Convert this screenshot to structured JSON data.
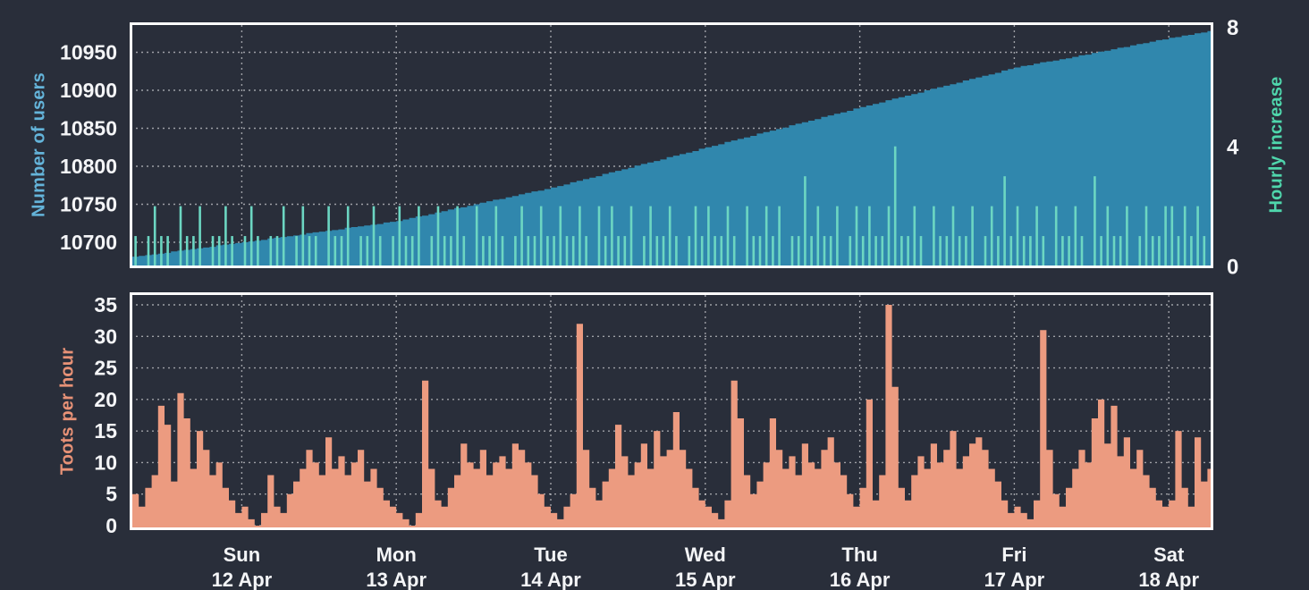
{
  "page": {
    "background_color": "#292e3a",
    "frame_color": "#ffffff",
    "gridline_color": "#ffffff",
    "tick_label_color": "#f4f5f7"
  },
  "chart_data": [
    {
      "type": "area",
      "axes": {
        "left": {
          "label": "Number of users",
          "label_color": "#64b4da",
          "ticks": [
            10700,
            10750,
            10800,
            10850,
            10900,
            10950
          ],
          "range": [
            10668,
            10984
          ]
        },
        "right": {
          "label": "Hourly increase",
          "label_color": "#4fd6ac",
          "ticks": [
            0,
            4,
            8
          ],
          "range": [
            0,
            8
          ]
        }
      },
      "grid": "dotted",
      "series": [
        {
          "name": "Number of users",
          "type": "area",
          "axis": "left",
          "color": "#3087ad",
          "values": [
            10681,
            10682,
            10683,
            10684,
            10685,
            10686,
            10688,
            10689,
            10690,
            10691,
            10692,
            10693,
            10694,
            10696,
            10697,
            10698,
            10699,
            10700,
            10701,
            10702,
            10703,
            10705,
            10706,
            10707,
            10708,
            10709,
            10710,
            10712,
            10713,
            10714,
            10715,
            10716,
            10717,
            10719,
            10720,
            10721,
            10722,
            10723,
            10724,
            10726,
            10727,
            10728,
            10730,
            10732,
            10734,
            10735,
            10737,
            10739,
            10741,
            10743,
            10745,
            10746,
            10748,
            10750,
            10752,
            10754,
            10756,
            10757,
            10759,
            10761,
            10763,
            10765,
            10767,
            10768,
            10770,
            10772,
            10774,
            10776,
            10779,
            10781,
            10783,
            10785,
            10787,
            10790,
            10792,
            10794,
            10796,
            10798,
            10801,
            10803,
            10805,
            10807,
            10809,
            10812,
            10814,
            10816,
            10818,
            10820,
            10823,
            10825,
            10827,
            10829,
            10832,
            10834,
            10836,
            10838,
            10840,
            10843,
            10845,
            10847,
            10849,
            10851,
            10854,
            10856,
            10858,
            10860,
            10862,
            10865,
            10867,
            10869,
            10871,
            10873,
            10876,
            10878,
            10880,
            10882,
            10884,
            10887,
            10889,
            10891,
            10893,
            10895,
            10897,
            10900,
            10902,
            10904,
            10906,
            10908,
            10910,
            10913,
            10915,
            10917,
            10919,
            10921,
            10923,
            10926,
            10928,
            10930,
            10932,
            10933,
            10935,
            10937,
            10938,
            10939,
            10941,
            10942,
            10944,
            10946,
            10947,
            10949,
            10951,
            10952,
            10954,
            10956,
            10957,
            10959,
            10961,
            10962,
            10964,
            10966,
            10967,
            10969,
            10970,
            10972,
            10973,
            10975,
            10976,
            10978,
            10979
          ]
        },
        {
          "name": "Hourly increase",
          "type": "bar",
          "axis": "right",
          "color": "#6cd6c2",
          "values": [
            1,
            0,
            1,
            2,
            1,
            1,
            0,
            2,
            1,
            1,
            2,
            0,
            1,
            1,
            2,
            1,
            0,
            1,
            2,
            1,
            0,
            1,
            1,
            2,
            0,
            1,
            2,
            1,
            1,
            0,
            2,
            1,
            1,
            2,
            0,
            1,
            1,
            2,
            1,
            0,
            1,
            2,
            1,
            1,
            2,
            0,
            1,
            2,
            1,
            1,
            2,
            1,
            0,
            2,
            1,
            1,
            2,
            1,
            0,
            1,
            2,
            1,
            1,
            2,
            1,
            1,
            2,
            1,
            1,
            2,
            1,
            0,
            2,
            1,
            2,
            1,
            1,
            2,
            0,
            1,
            2,
            1,
            1,
            2,
            1,
            0,
            1,
            2,
            1,
            2,
            1,
            1,
            2,
            1,
            0,
            2,
            1,
            1,
            2,
            1,
            2,
            0,
            1,
            1,
            3,
            1,
            2,
            1,
            1,
            2,
            0,
            1,
            2,
            1,
            2,
            1,
            1,
            2,
            4,
            1,
            1,
            2,
            1,
            0,
            2,
            1,
            1,
            2,
            1,
            1,
            2,
            0,
            1,
            2,
            1,
            3,
            1,
            2,
            1,
            1,
            2,
            1,
            0,
            2,
            1,
            1,
            2,
            1,
            0,
            3,
            1,
            2,
            1,
            1,
            2,
            0,
            1,
            2,
            1,
            1,
            2,
            2,
            1,
            2,
            1,
            2,
            1,
            2,
            1
          ]
        }
      ]
    },
    {
      "type": "bar",
      "axes": {
        "left": {
          "label": "Toots per hour",
          "label_color": "#e89277",
          "ticks": [
            0,
            5,
            10,
            15,
            20,
            25,
            30,
            35
          ],
          "range": [
            0,
            36.5
          ]
        }
      },
      "grid": "dotted",
      "series": [
        {
          "name": "Toots per hour",
          "type": "step-bar",
          "color": "#ec9b80",
          "values": [
            5,
            3,
            6,
            8,
            19,
            16,
            7,
            21,
            17,
            9,
            15,
            12,
            8,
            10,
            6,
            4,
            2,
            3,
            1,
            0,
            2,
            8,
            3,
            2,
            5,
            7,
            9,
            12,
            10,
            8,
            14,
            9,
            11,
            8,
            10,
            12,
            7,
            9,
            6,
            4,
            3,
            2,
            1,
            0,
            2,
            23,
            9,
            4,
            3,
            6,
            8,
            13,
            10,
            9,
            12,
            8,
            10,
            11,
            9,
            13,
            12,
            10,
            8,
            5,
            3,
            2,
            1,
            3,
            5,
            32,
            12,
            6,
            4,
            7,
            9,
            16,
            11,
            8,
            10,
            13,
            9,
            15,
            11,
            12,
            18,
            12,
            9,
            6,
            4,
            3,
            2,
            1,
            4,
            23,
            17,
            8,
            5,
            7,
            10,
            17,
            12,
            9,
            11,
            8,
            13,
            10,
            9,
            12,
            14,
            10,
            8,
            5,
            3,
            6,
            20,
            4,
            8,
            35,
            22,
            6,
            4,
            8,
            11,
            9,
            13,
            10,
            12,
            15,
            9,
            11,
            13,
            14,
            12,
            9,
            7,
            4,
            2,
            3,
            2,
            1,
            4,
            31,
            12,
            5,
            3,
            6,
            9,
            12,
            10,
            17,
            20,
            13,
            19,
            11,
            14,
            9,
            12,
            8,
            6,
            4,
            3,
            4,
            15,
            6,
            3,
            14,
            7,
            9,
            5
          ]
        }
      ]
    }
  ],
  "x_axis": {
    "unit": "hours",
    "points_per_day": 24,
    "first_day_tick_index": 17,
    "days": [
      {
        "day": "Sun",
        "date": "12 Apr"
      },
      {
        "day": "Mon",
        "date": "13 Apr"
      },
      {
        "day": "Tue",
        "date": "14 Apr"
      },
      {
        "day": "Wed",
        "date": "15 Apr"
      },
      {
        "day": "Thu",
        "date": "16 Apr"
      },
      {
        "day": "Fri",
        "date": "17 Apr"
      },
      {
        "day": "Sat",
        "date": "18 Apr"
      }
    ]
  }
}
